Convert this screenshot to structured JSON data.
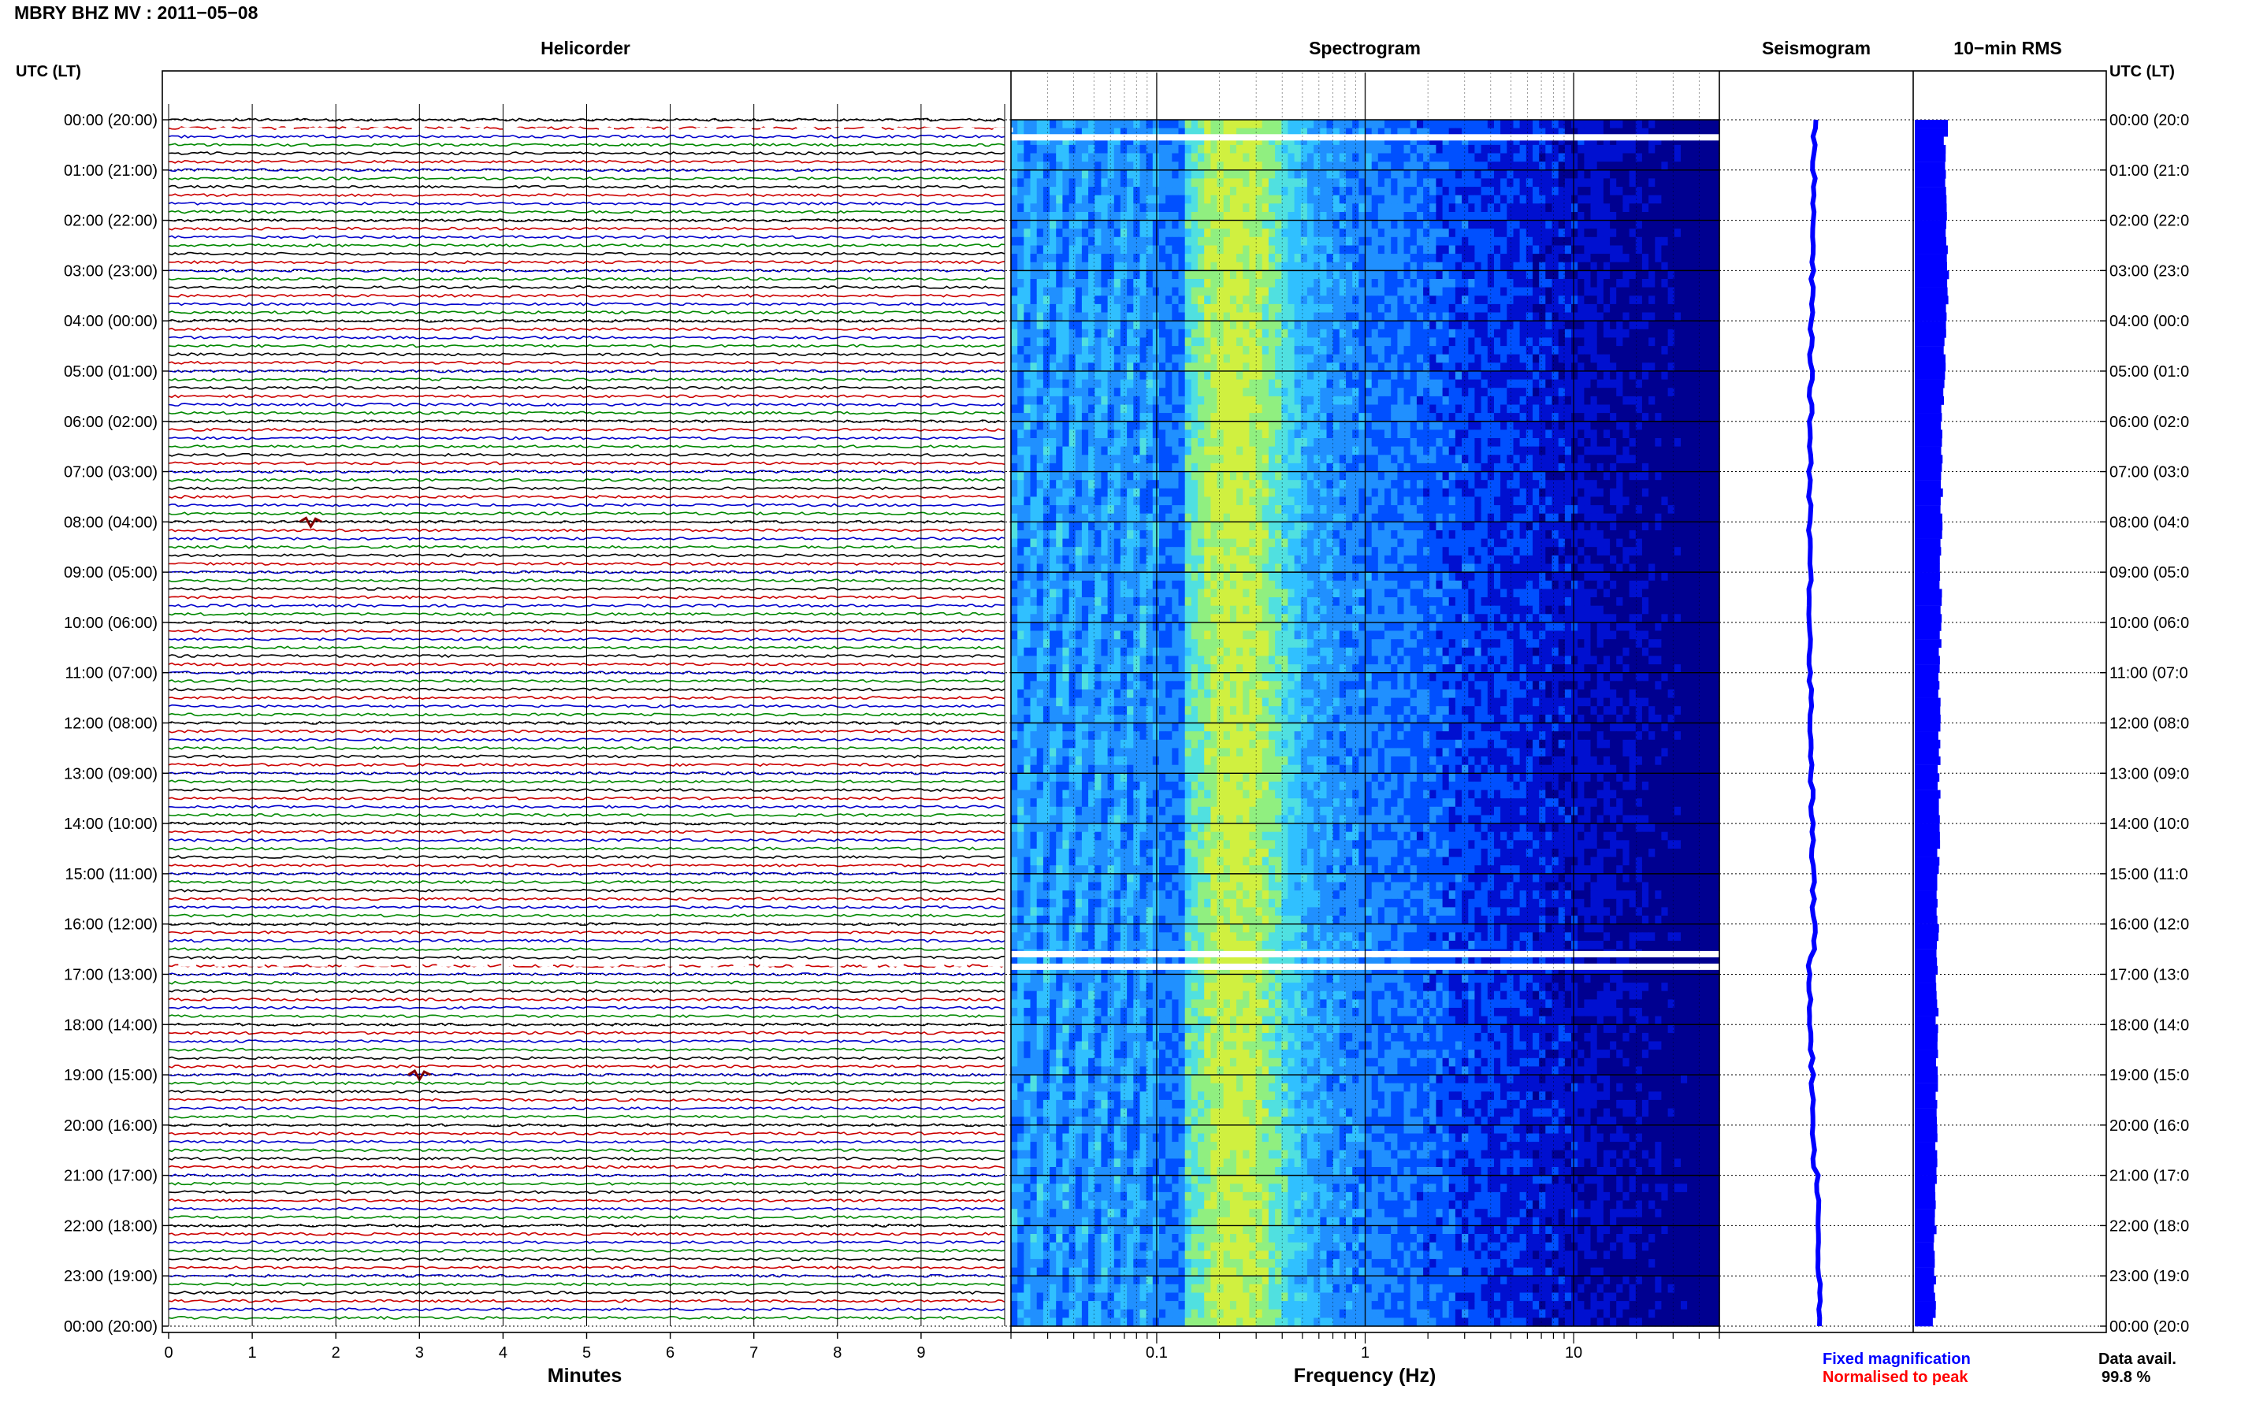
{
  "header": {
    "title": "MBRY BHZ MV : 2011−05−08"
  },
  "panels": {
    "helicorder": "Helicorder",
    "spectrogram": "Spectrogram",
    "seismogram": "Seismogram",
    "rms": "10−min RMS"
  },
  "time_axis": {
    "header_left": "UTC (LT)",
    "header_right": "UTC (LT)",
    "labels": [
      "00:00 (20:00)",
      "01:00 (21:00)",
      "02:00 (22:00)",
      "03:00 (23:00)",
      "04:00 (00:00)",
      "05:00 (01:00)",
      "06:00 (02:00)",
      "07:00 (03:00)",
      "08:00 (04:00)",
      "09:00 (05:00)",
      "10:00 (06:00)",
      "11:00 (07:00)",
      "12:00 (08:00)",
      "13:00 (09:00)",
      "14:00 (10:00)",
      "15:00 (11:00)",
      "16:00 (12:00)",
      "17:00 (13:00)",
      "18:00 (14:00)",
      "19:00 (15:00)",
      "20:00 (16:00)",
      "21:00 (17:00)",
      "22:00 (18:00)",
      "23:00 (19:00)",
      "00:00 (20:00)"
    ],
    "labels_right": [
      "00:00 (20:0",
      "01:00 (21:0",
      "02:00 (22:0",
      "03:00 (23:0",
      "04:00 (00:0",
      "05:00 (01:0",
      "06:00 (02:0",
      "07:00 (03:0",
      "08:00 (04:0",
      "09:00 (05:0",
      "10:00 (06:0",
      "11:00 (07:0",
      "12:00 (08:0",
      "13:00 (09:0",
      "14:00 (10:0",
      "15:00 (11:0",
      "16:00 (12:0",
      "17:00 (13:0",
      "18:00 (14:0",
      "19:00 (15:0",
      "20:00 (16:0",
      "21:00 (17:0",
      "22:00 (18:0",
      "23:00 (19:0",
      "00:00 (20:0"
    ]
  },
  "legend": {
    "fixed": "Fixed magnification",
    "normalised": "Normalised to peak",
    "fixed_color": "#0000ff",
    "normalised_color": "#ff0000"
  },
  "availability": {
    "label": "Data avail.",
    "value": "99.8 %"
  },
  "chart_data": [
    {
      "type": "line",
      "name": "helicorder",
      "title": "Helicorder",
      "xlabel": "Minutes",
      "x_ticks": [
        "0",
        "1",
        "2",
        "3",
        "4",
        "5",
        "6",
        "7",
        "8",
        "9"
      ],
      "xlim": [
        0,
        10
      ],
      "traces_per_hour": 6,
      "hours": 24,
      "trace_colors": [
        "#000000",
        "#cc0000",
        "#0000cc",
        "#008800"
      ],
      "gaps_hours": [
        0.2,
        16.8
      ],
      "events": [
        {
          "hour": 19.0,
          "minute": 3.0
        },
        {
          "hour": 8.0,
          "minute": 1.7
        }
      ]
    },
    {
      "type": "heatmap",
      "name": "spectrogram",
      "title": "Spectrogram",
      "xlabel": "Frequency (Hz)",
      "x_scale": "log",
      "xlim": [
        0.02,
        50
      ],
      "x_ticks": [
        "0.1",
        "1",
        "10"
      ],
      "colormap": [
        "#000090",
        "#0010d0",
        "#0050ff",
        "#2090ff",
        "#30c0ff",
        "#50e0e0",
        "#90ef80",
        "#d0f040"
      ],
      "gaps_hours": [
        0.35,
        16.6,
        16.85
      ]
    },
    {
      "type": "line",
      "name": "seismogram",
      "title": "Seismogram",
      "color": "#0000ff"
    },
    {
      "type": "bar",
      "name": "rms",
      "title": "10−min RMS",
      "color": "#0000ff"
    }
  ]
}
